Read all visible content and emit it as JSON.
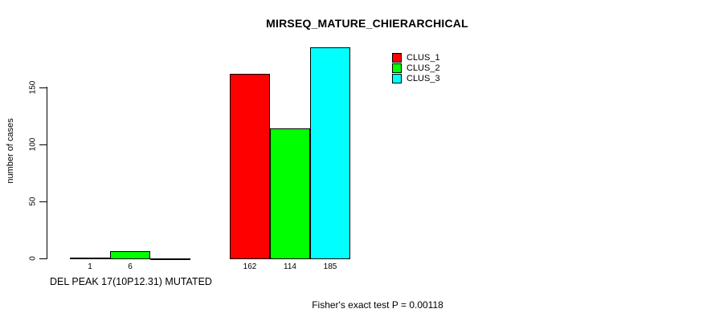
{
  "chart_data": {
    "type": "bar",
    "title": "MIRSEQ_MATURE_CHIERARCHICAL",
    "ylabel": "number of cases",
    "xlabel": "DEL PEAK 17(10P12.31) MUTATED",
    "annotation": "Fisher's exact test P = 0.00118",
    "ylim": [
      0,
      185
    ],
    "yticks": [
      0,
      50,
      100,
      150
    ],
    "grid": false,
    "legend_position": "top-right",
    "legend_entries": [
      "CLUS_1",
      "CLUS_2",
      "CLUS_3"
    ],
    "series": [
      {
        "name": "CLUS_1",
        "color": "#ff0000",
        "values": [
          1,
          162
        ]
      },
      {
        "name": "CLUS_2",
        "color": "#00ff00",
        "values": [
          6,
          114
        ]
      },
      {
        "name": "CLUS_3",
        "color": "#00ffff",
        "values": [
          0,
          185
        ]
      }
    ],
    "groups": [
      {
        "bar_labels": [
          "1",
          "6",
          ""
        ]
      },
      {
        "bar_labels": [
          "162",
          "114",
          "185"
        ]
      }
    ],
    "colors": {
      "background": "#ffffff",
      "axis": "#000000",
      "text": "#000000"
    }
  }
}
